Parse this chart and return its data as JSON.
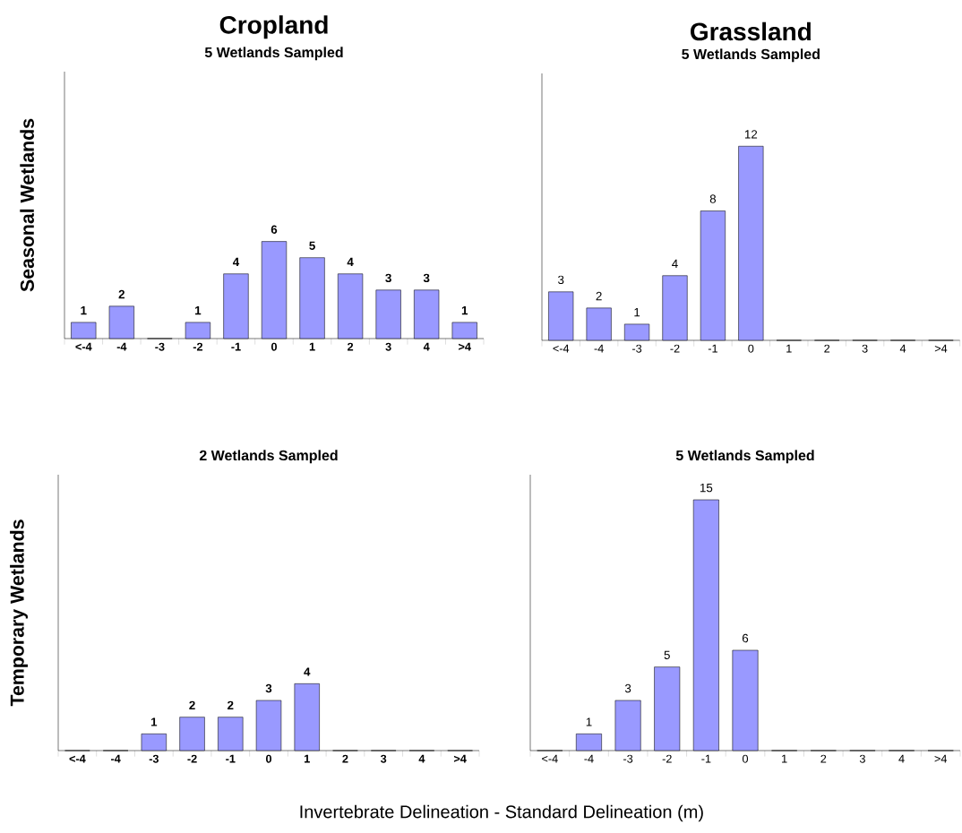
{
  "chart_data": [
    {
      "type": "bar",
      "title": "Cropland",
      "subtitle": "5 Wetlands Sampled",
      "ylabel": "Seasonal Wetlands",
      "categories": [
        "<-4",
        "-4",
        "-3",
        "-2",
        "-1",
        "0",
        "1",
        "2",
        "3",
        "4",
        ">4"
      ],
      "color": "#9999ff",
      "values": [
        1,
        2,
        0,
        1,
        4,
        6,
        5,
        4,
        3,
        3,
        1
      ],
      "value_labels": [
        "1",
        "2",
        null,
        "1",
        "4",
        "6",
        "5",
        "4",
        "3",
        "3",
        "1"
      ]
    },
    {
      "type": "bar",
      "title": "Grassland",
      "subtitle": "5 Wetlands Sampled",
      "categories": [
        "<-4",
        "-4",
        "-3",
        "-2",
        "-1",
        "0",
        "1",
        "2",
        "3",
        "4",
        ">4"
      ],
      "color": "#9999ff",
      "values": [
        3,
        2,
        1,
        4,
        8,
        12,
        0,
        0,
        0,
        0,
        0
      ],
      "value_labels": [
        "3",
        "2",
        "1",
        "4",
        "8",
        "12",
        null,
        null,
        null,
        null,
        null
      ]
    },
    {
      "type": "bar",
      "subtitle": "2 Wetlands Sampled",
      "ylabel": "Temporary Wetlands",
      "xlabel": "Invertebrate Delineation - Standard Delineation (m)",
      "categories": [
        "<-4",
        "-4",
        "-3",
        "-2",
        "-1",
        "0",
        "1",
        "2",
        "3",
        "4",
        ">4"
      ],
      "color": "#9999ff",
      "values": [
        0,
        0,
        1,
        2,
        2,
        3,
        4,
        0,
        0,
        0,
        0
      ],
      "value_labels": [
        null,
        null,
        "1",
        "2",
        "2",
        "3",
        "4",
        null,
        null,
        null,
        null
      ]
    },
    {
      "type": "bar",
      "subtitle": "5 Wetlands Sampled",
      "categories": [
        "<-4",
        "-4",
        "-3",
        "-2",
        "-1",
        "0",
        "1",
        "2",
        "3",
        "4",
        ">4"
      ],
      "color": "#9999ff",
      "values": [
        0,
        1,
        3,
        5,
        15,
        6,
        0,
        0,
        0,
        0,
        0
      ],
      "value_labels": [
        null,
        "1",
        "3",
        "5",
        "15",
        "6",
        null,
        null,
        null,
        null,
        null
      ]
    }
  ]
}
